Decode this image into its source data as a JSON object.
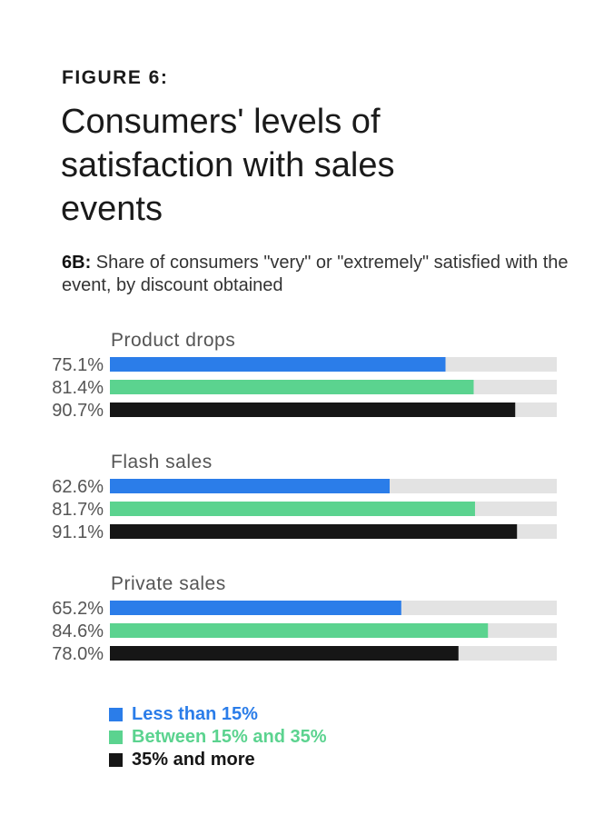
{
  "figure_label": "FIGURE 6:",
  "title": "Consumers' levels of satisfaction with sales events",
  "subtitle_prefix": "6B:",
  "subtitle_text": "Share of consumers \"very\" or \"extremely\" satisfied with the event, by discount obtained",
  "colors": {
    "track": "#e3e3e3",
    "series": [
      "#2b7de9",
      "#5bd38f",
      "#161616"
    ],
    "group_label": "#555555",
    "value_label": "#555555"
  },
  "chart_data": {
    "type": "bar",
    "orientation": "horizontal",
    "xlim": [
      0,
      100
    ],
    "value_suffix": "%",
    "series": [
      {
        "name": "Less than 15%"
      },
      {
        "name": "Between 15% and 35%"
      },
      {
        "name": "35% and more"
      }
    ],
    "groups": [
      {
        "label": "Product drops",
        "values": [
          75.1,
          81.4,
          90.7
        ],
        "labels": [
          "75.1%",
          "81.4%",
          "90.7%"
        ]
      },
      {
        "label": "Flash sales",
        "values": [
          62.6,
          81.7,
          91.1
        ],
        "labels": [
          "62.6%",
          "81.7%",
          "91.1%"
        ]
      },
      {
        "label": "Private sales",
        "values": [
          65.2,
          84.6,
          78.0
        ],
        "labels": [
          "65.2%",
          "84.6%",
          "78.0%"
        ]
      }
    ]
  },
  "legend": [
    {
      "label": "Less than 15%",
      "color": "#2b7de9"
    },
    {
      "label": "Between 15% and 35%",
      "color": "#5bd38f"
    },
    {
      "label": "35% and more",
      "color": "#161616"
    }
  ]
}
